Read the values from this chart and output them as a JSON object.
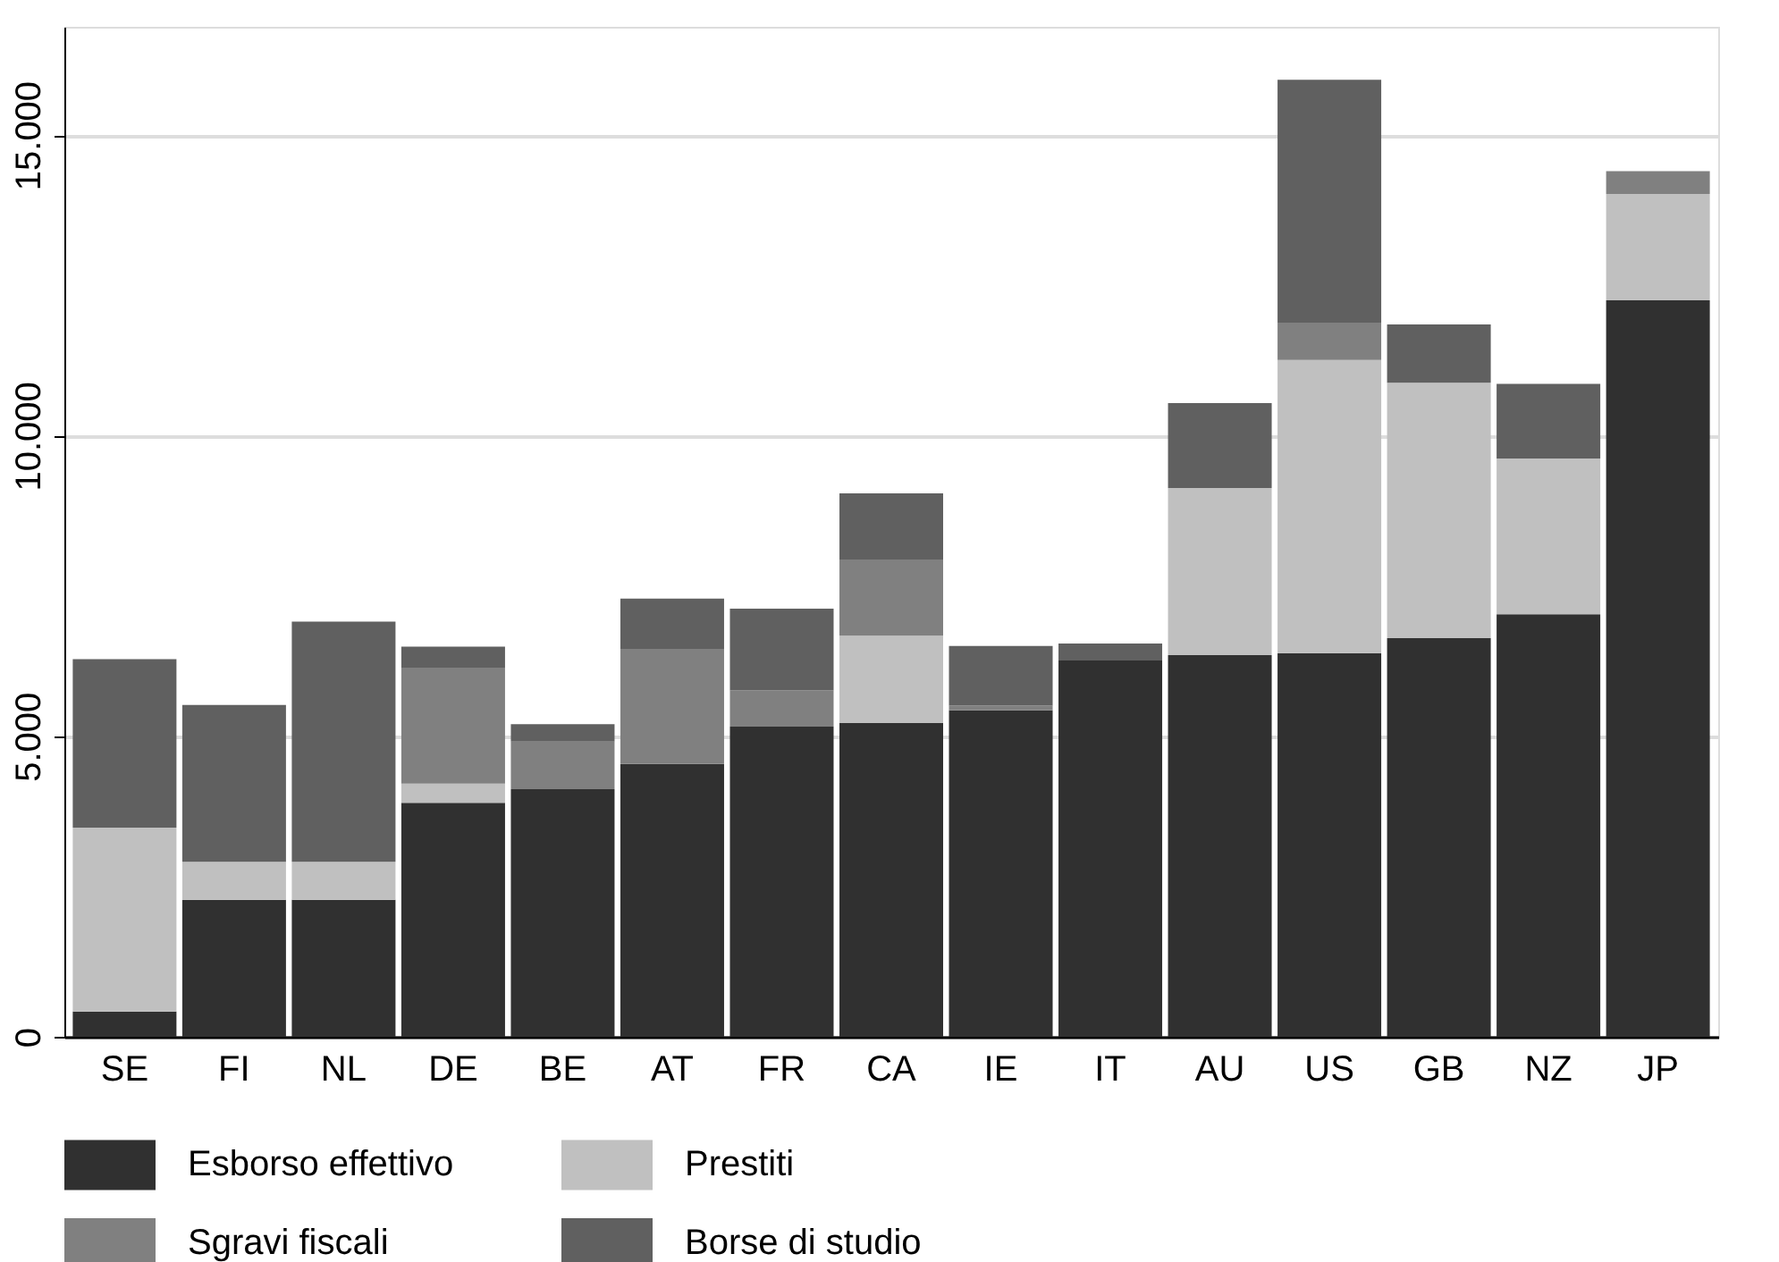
{
  "chart_data": {
    "type": "bar",
    "stacked": true,
    "categories": [
      "SE",
      "FI",
      "NL",
      "DE",
      "BE",
      "AT",
      "FR",
      "CA",
      "IE",
      "IT",
      "AU",
      "US",
      "GB",
      "NZ",
      "JP"
    ],
    "series": [
      {
        "name": "Esborso effettivo",
        "color": "#303030",
        "values": [
          420,
          2280,
          2280,
          3890,
          4120,
          4540,
          5160,
          5220,
          5430,
          6260,
          6350,
          6380,
          6630,
          7030,
          12250
        ]
      },
      {
        "name": "Prestiti",
        "color": "#c0c0c0",
        "values": [
          3060,
          630,
          630,
          320,
          0,
          0,
          0,
          1450,
          0,
          0,
          2780,
          4880,
          4250,
          2590,
          1770
        ]
      },
      {
        "name": "Sgravi fiscali",
        "color": "#808080",
        "values": [
          0,
          0,
          0,
          1930,
          790,
          1900,
          600,
          1270,
          80,
          0,
          0,
          620,
          0,
          0,
          380
        ]
      },
      {
        "name": "Borse di studio",
        "color": "#606060",
        "values": [
          2800,
          2610,
          3995,
          350,
          290,
          850,
          1360,
          1100,
          990,
          280,
          1410,
          4040,
          970,
          1240,
          0
        ]
      }
    ],
    "ylim": [
      0,
      16800
    ],
    "yticks": [
      0,
      {
        "value": 5000,
        "label": "5.000"
      },
      {
        "value": 10000,
        "label": "10.000"
      },
      {
        "value": 15000,
        "label": "15.000"
      }
    ],
    "grid": "y",
    "legend": "bottom"
  }
}
